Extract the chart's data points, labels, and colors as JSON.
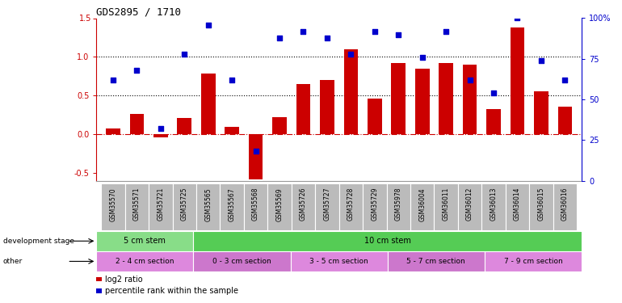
{
  "title": "GDS2895 / 1710",
  "samples": [
    "GSM35570",
    "GSM35571",
    "GSM35721",
    "GSM35725",
    "GSM35565",
    "GSM35567",
    "GSM35568",
    "GSM35569",
    "GSM35726",
    "GSM35727",
    "GSM35728",
    "GSM35729",
    "GSM35978",
    "GSM36004",
    "GSM36011",
    "GSM36012",
    "GSM36013",
    "GSM36014",
    "GSM36015",
    "GSM36016"
  ],
  "log2_ratio": [
    0.07,
    0.26,
    -0.04,
    0.21,
    0.78,
    0.09,
    -0.58,
    0.22,
    0.65,
    0.7,
    1.1,
    0.46,
    0.92,
    0.85,
    0.92,
    0.9,
    0.32,
    1.38,
    0.55,
    0.36
  ],
  "percentile_pct": [
    62,
    68,
    32,
    78,
    96,
    62,
    18,
    88,
    92,
    88,
    78,
    92,
    90,
    76,
    92,
    62,
    54,
    100,
    74,
    62
  ],
  "bar_color": "#cc0000",
  "dot_color": "#0000cc",
  "left_ylim": [
    -0.6,
    1.5
  ],
  "right_ylim": [
    0,
    100
  ],
  "left_yticks": [
    -0.5,
    0.0,
    0.5,
    1.0,
    1.5
  ],
  "right_yticks": [
    0,
    25,
    50,
    75,
    100
  ],
  "hlines": [
    0.5,
    1.0
  ],
  "zero_line_color": "#cc0000",
  "dev_stage_groups": [
    {
      "label": "5 cm stem",
      "start": 0,
      "end": 4,
      "color": "#88dd88"
    },
    {
      "label": "10 cm stem",
      "start": 4,
      "end": 20,
      "color": "#55cc55"
    }
  ],
  "other_groups": [
    {
      "label": "2 - 4 cm section",
      "start": 0,
      "end": 4,
      "color": "#dd88dd"
    },
    {
      "label": "0 - 3 cm section",
      "start": 4,
      "end": 8,
      "color": "#cc77cc"
    },
    {
      "label": "3 - 5 cm section",
      "start": 8,
      "end": 12,
      "color": "#dd88dd"
    },
    {
      "label": "5 - 7 cm section",
      "start": 12,
      "end": 16,
      "color": "#cc77cc"
    },
    {
      "label": "7 - 9 cm section",
      "start": 16,
      "end": 20,
      "color": "#dd88dd"
    }
  ],
  "legend_items": [
    {
      "label": "log2 ratio",
      "color": "#cc0000"
    },
    {
      "label": "percentile rank within the sample",
      "color": "#0000cc"
    }
  ],
  "bg_color": "#ffffff",
  "tick_label_bg": "#bbbbbb",
  "spine_color": "#000000"
}
